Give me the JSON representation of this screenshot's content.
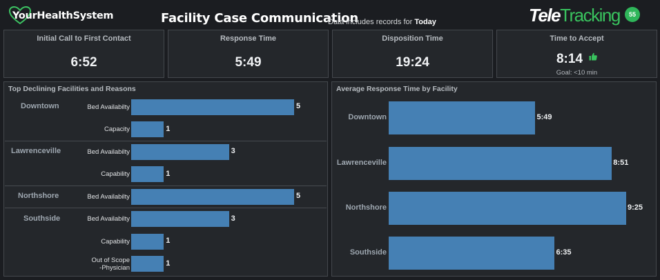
{
  "header": {
    "brand": "YourHealthSystem",
    "title": "Facility Case Communication",
    "subtitle_prefix": "Data includes records for",
    "subtitle_period": "Today",
    "partner_logo_part1": "Tele",
    "partner_logo_part2": "Tracking",
    "partner_badge": "55"
  },
  "kpis": [
    {
      "label": "Initial Call to First Contact",
      "value": "6:52"
    },
    {
      "label": "Response Time",
      "value": "5:49"
    },
    {
      "label": "Disposition Time",
      "value": "19:24"
    },
    {
      "label": "Time to Accept",
      "value": "8:14",
      "goal": "Goal:  <10 min",
      "icon": "thumbs-up-icon"
    }
  ],
  "declining": {
    "title": "Top Declining Facilities and Reasons",
    "groups": [
      {
        "facility": "Downtown",
        "reasons": [
          {
            "label": "Bed Availabilty",
            "value": 5
          },
          {
            "label": "Capacity",
            "value": 1
          }
        ]
      },
      {
        "facility": "Lawrenceville",
        "reasons": [
          {
            "label": "Bed Availabilty",
            "value": 3
          },
          {
            "label": "Capability",
            "value": 1
          }
        ]
      },
      {
        "facility": "Northshore",
        "reasons": [
          {
            "label": "Bed Availabilty",
            "value": 5
          }
        ]
      },
      {
        "facility": "Southside",
        "reasons": [
          {
            "label": "Bed Availabilty",
            "value": 3
          },
          {
            "label": "Capability",
            "value": 1
          },
          {
            "label": "Out of Scope\n-Physician",
            "value": 1
          }
        ]
      }
    ]
  },
  "response_chart": {
    "title": "Average Response Time by Facility",
    "facilities": [
      "Downtown",
      "Lawrenceville",
      "Northshore",
      "Southside"
    ],
    "labels": [
      "5:49",
      "8:51",
      "9:25",
      "6:35"
    ],
    "values_seconds": [
      349,
      531,
      565,
      395
    ]
  },
  "colors": {
    "bar": "#4580b4",
    "accent_green": "#39c35e",
    "panel_bg": "#24272b",
    "page_bg": "#1b1d21"
  },
  "chart_data": [
    {
      "type": "bar",
      "orientation": "horizontal",
      "title": "Top Declining Facilities and Reasons",
      "categories": [
        "Downtown / Bed Availabilty",
        "Downtown / Capacity",
        "Lawrenceville / Bed Availabilty",
        "Lawrenceville / Capability",
        "Northshore / Bed Availabilty",
        "Southside / Bed Availabilty",
        "Southside / Capability",
        "Southside / Out of Scope -Physician"
      ],
      "values": [
        5,
        1,
        3,
        1,
        5,
        3,
        1,
        1
      ],
      "grid": false
    },
    {
      "type": "bar",
      "orientation": "horizontal",
      "title": "Average Response Time by Facility",
      "categories": [
        "Downtown",
        "Lawrenceville",
        "Northshore",
        "Southside"
      ],
      "values": [
        "5:49",
        "8:51",
        "9:25",
        "6:35"
      ],
      "grid": false
    }
  ]
}
